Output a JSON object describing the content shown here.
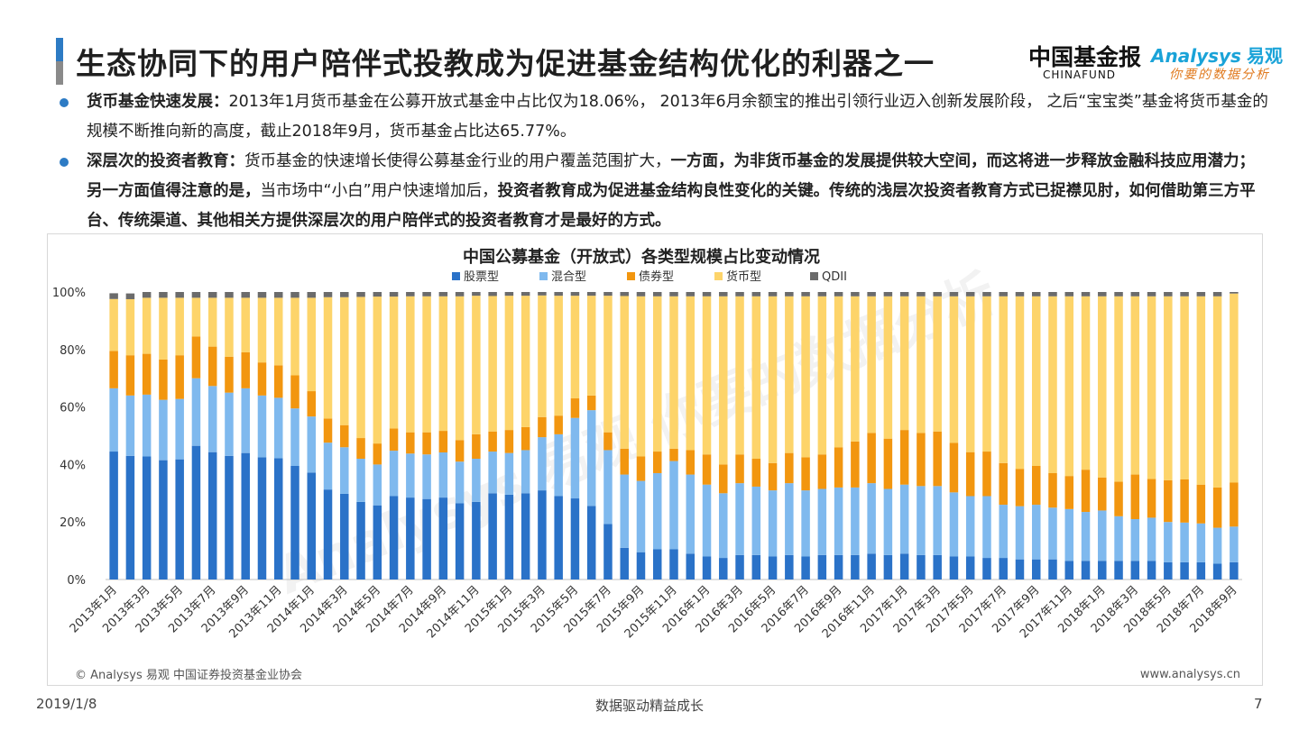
{
  "header": {
    "title": "生态协同下的用户陪伴式投教成为促进基金结构优化的利器之一",
    "logo_chinafund": "中国基金报",
    "logo_chinafund_sub": "CHINAFUND",
    "logo_analysys": "Analysys",
    "logo_analysys_cn": "易观",
    "logo_analysys_slogan": "你要的数据分析"
  },
  "bullets": [
    {
      "lead": "货币基金快速发展：",
      "segments": [
        {
          "text": "2013年1月货币基金在公募开放式基金中占比仅为18.06%， 2013年6月余额宝的推出引领行业迈入创新发展阶段， 之后“宝宝类”基金将货币基金的规模不断推向新的高度，截止2018年9月，货币基金占比达65.77%。",
          "bold": false
        }
      ]
    },
    {
      "lead": "深层次的投资者教育：",
      "segments": [
        {
          "text": "货币基金的快速增长使得公募基金行业的用户覆盖范围扩大，",
          "bold": false
        },
        {
          "text": "一方面，为非货币基金的发展提供较大空间，而这将进一步释放金融科技应用潜力；另一方面值得注意的是，",
          "bold": true
        },
        {
          "text": "当市场中“小白”用户快速增加后，",
          "bold": false
        },
        {
          "text": "投资者教育成为促进基金结构良性变化的关键。传统的浅层次投资者教育方式已捉襟见肘，如何借助第三方平台、传统渠道、其他相关方提供深层次的用户陪伴式的投资者教育才是最好的方式。",
          "bold": true
        }
      ]
    }
  ],
  "chart_source": "© Analysys 易观 中国证券投资基金业协会",
  "chart_url": "www.analysys.cn",
  "watermark": "Analysys 易观 你要的数据分析",
  "chart_data": {
    "type": "bar",
    "stacked": true,
    "title": "中国公募基金（开放式）各类型规模占比变动情况",
    "legend_position": "top",
    "ylim": [
      0,
      100
    ],
    "yticks": [
      "0%",
      "20%",
      "40%",
      "60%",
      "80%",
      "100%"
    ],
    "grid": false,
    "categories": [
      "2013年1月",
      "2013年2月",
      "2013年3月",
      "2013年4月",
      "2013年5月",
      "2013年6月",
      "2013年7月",
      "2013年8月",
      "2013年9月",
      "2013年10月",
      "2013年11月",
      "2013年12月",
      "2014年1月",
      "2014年2月",
      "2014年3月",
      "2014年4月",
      "2014年5月",
      "2014年6月",
      "2014年7月",
      "2014年8月",
      "2014年9月",
      "2014年10月",
      "2014年11月",
      "2014年12月",
      "2015年1月",
      "2015年2月",
      "2015年3月",
      "2015年4月",
      "2015年5月",
      "2015年6月",
      "2015年7月",
      "2015年8月",
      "2015年9月",
      "2015年10月",
      "2015年11月",
      "2015年12月",
      "2016年1月",
      "2016年2月",
      "2016年3月",
      "2016年4月",
      "2016年5月",
      "2016年6月",
      "2016年7月",
      "2016年8月",
      "2016年9月",
      "2016年10月",
      "2016年11月",
      "2016年12月",
      "2017年1月",
      "2017年2月",
      "2017年3月",
      "2017年4月",
      "2017年5月",
      "2017年6月",
      "2017年7月",
      "2017年8月",
      "2017年9月",
      "2017年10月",
      "2017年11月",
      "2017年12月",
      "2018年1月",
      "2018年2月",
      "2018年3月",
      "2018年4月",
      "2018年5月",
      "2018年6月",
      "2018年7月",
      "2018年8月",
      "2018年9月"
    ],
    "series": [
      {
        "name": "股票型",
        "color": "#2a72c8",
        "values": [
          44.5,
          43,
          42.8,
          41.5,
          41.8,
          46.5,
          44.3,
          43,
          44,
          42.5,
          42.2,
          39.5,
          37.2,
          31.3,
          29.8,
          27,
          25.8,
          29,
          28.5,
          28,
          28.5,
          26.5,
          27,
          30,
          29.5,
          30,
          31,
          29,
          28.2,
          25.6,
          19.3,
          11,
          9.5,
          10.5,
          10.5,
          9,
          8,
          7.5,
          8.5,
          8.5,
          8,
          8.5,
          8,
          8.5,
          8.5,
          8.5,
          9,
          8.5,
          9,
          8.5,
          8.5,
          8,
          8,
          7.5,
          7.5,
          7,
          7,
          7,
          6.5,
          6.5,
          6.5,
          6.5,
          6.5,
          6.5,
          6,
          6,
          6,
          5.5,
          6
        ]
      },
      {
        "name": "混合型",
        "color": "#7fb9ee",
        "values": [
          22,
          21,
          21.5,
          21,
          21,
          23.5,
          23,
          22,
          22.5,
          21.5,
          21,
          20,
          19.5,
          16.3,
          16.2,
          15,
          14.2,
          15.8,
          15.3,
          15.5,
          15.7,
          14.5,
          15,
          14.5,
          14.5,
          15,
          18.5,
          21.5,
          28,
          33.3,
          25.7,
          25.5,
          24.8,
          26.5,
          30.7,
          27.5,
          25,
          22.5,
          25,
          23.8,
          23,
          25,
          23,
          23,
          23.5,
          23.5,
          24.5,
          23,
          24,
          24,
          24,
          22.3,
          21,
          21.5,
          18.5,
          18.5,
          19,
          18,
          18,
          17,
          17.5,
          15.5,
          14.5,
          15,
          14,
          13.8,
          13.5,
          12.5,
          12.4
        ]
      },
      {
        "name": "债券型",
        "color": "#f2960f",
        "values": [
          13,
          14,
          14.2,
          14,
          15.2,
          14.5,
          13.7,
          12.5,
          12.5,
          11.5,
          11.3,
          11.5,
          8.8,
          8.4,
          7.7,
          7.2,
          7.3,
          7.7,
          7.4,
          7.7,
          7.5,
          7.5,
          8.5,
          7,
          8,
          8,
          7,
          6.5,
          6.8,
          5.1,
          6.2,
          9,
          8.5,
          7.5,
          4.3,
          8.5,
          10.5,
          10,
          10,
          9.7,
          9.5,
          10.5,
          11.5,
          12,
          14,
          16,
          17.5,
          17.5,
          19,
          18.5,
          19,
          17.2,
          15.3,
          15.5,
          14.5,
          13,
          13.5,
          12,
          11.5,
          14.7,
          11.5,
          12,
          15.5,
          13.5,
          14.5,
          15,
          13.5,
          14,
          15.3
        ]
      },
      {
        "name": "货币型",
        "color": "#fdd46a",
        "values": [
          18.06,
          19.5,
          19.5,
          21.5,
          20,
          13.5,
          17,
          20.5,
          19,
          22.5,
          23.5,
          27,
          32.5,
          42.2,
          44.5,
          49.1,
          51.1,
          45.9,
          47.3,
          47.3,
          46.8,
          50,
          48.2,
          47.1,
          46.7,
          45.7,
          42.3,
          41.7,
          35.7,
          34.7,
          47.5,
          53.1,
          55.7,
          54.0,
          53.0,
          53.5,
          55.0,
          58.5,
          55.0,
          56.5,
          58.0,
          54.5,
          56.0,
          55.0,
          52.5,
          50.5,
          47.5,
          49.5,
          46.5,
          47.5,
          47.0,
          51.0,
          54.2,
          54.0,
          58.0,
          60.0,
          59.0,
          61.5,
          62.5,
          60.3,
          63.0,
          64.5,
          62.0,
          63.5,
          64.0,
          63.7,
          65.5,
          66.5,
          65.77
        ]
      },
      {
        "name": "QDII",
        "color": "#6b6b6b",
        "values": [
          2,
          2,
          2,
          2,
          2,
          2,
          2,
          2,
          2,
          2,
          2,
          2,
          2,
          1.8,
          1.8,
          1.7,
          1.6,
          1.6,
          1.5,
          1.5,
          1.5,
          1.5,
          1.3,
          1.4,
          1.3,
          1.3,
          1.2,
          1.3,
          1.3,
          1.3,
          1.3,
          1.4,
          1.5,
          1.5,
          1.5,
          1.5,
          1.5,
          1.5,
          1.5,
          1.5,
          1.5,
          1.5,
          1.5,
          1.5,
          1.5,
          1.5,
          1.5,
          1.5,
          1.5,
          1.5,
          1.5,
          1.5,
          1.5,
          1.5,
          1.5,
          1.5,
          1.5,
          1.5,
          1.5,
          1.5,
          1.5,
          1.5,
          1.5,
          1.5,
          1.5,
          1.5,
          1.5,
          1.5,
          0.53
        ]
      }
    ]
  },
  "footer": {
    "date": "2019/1/8",
    "slogan": "数据驱动精益成长",
    "page": "7"
  }
}
